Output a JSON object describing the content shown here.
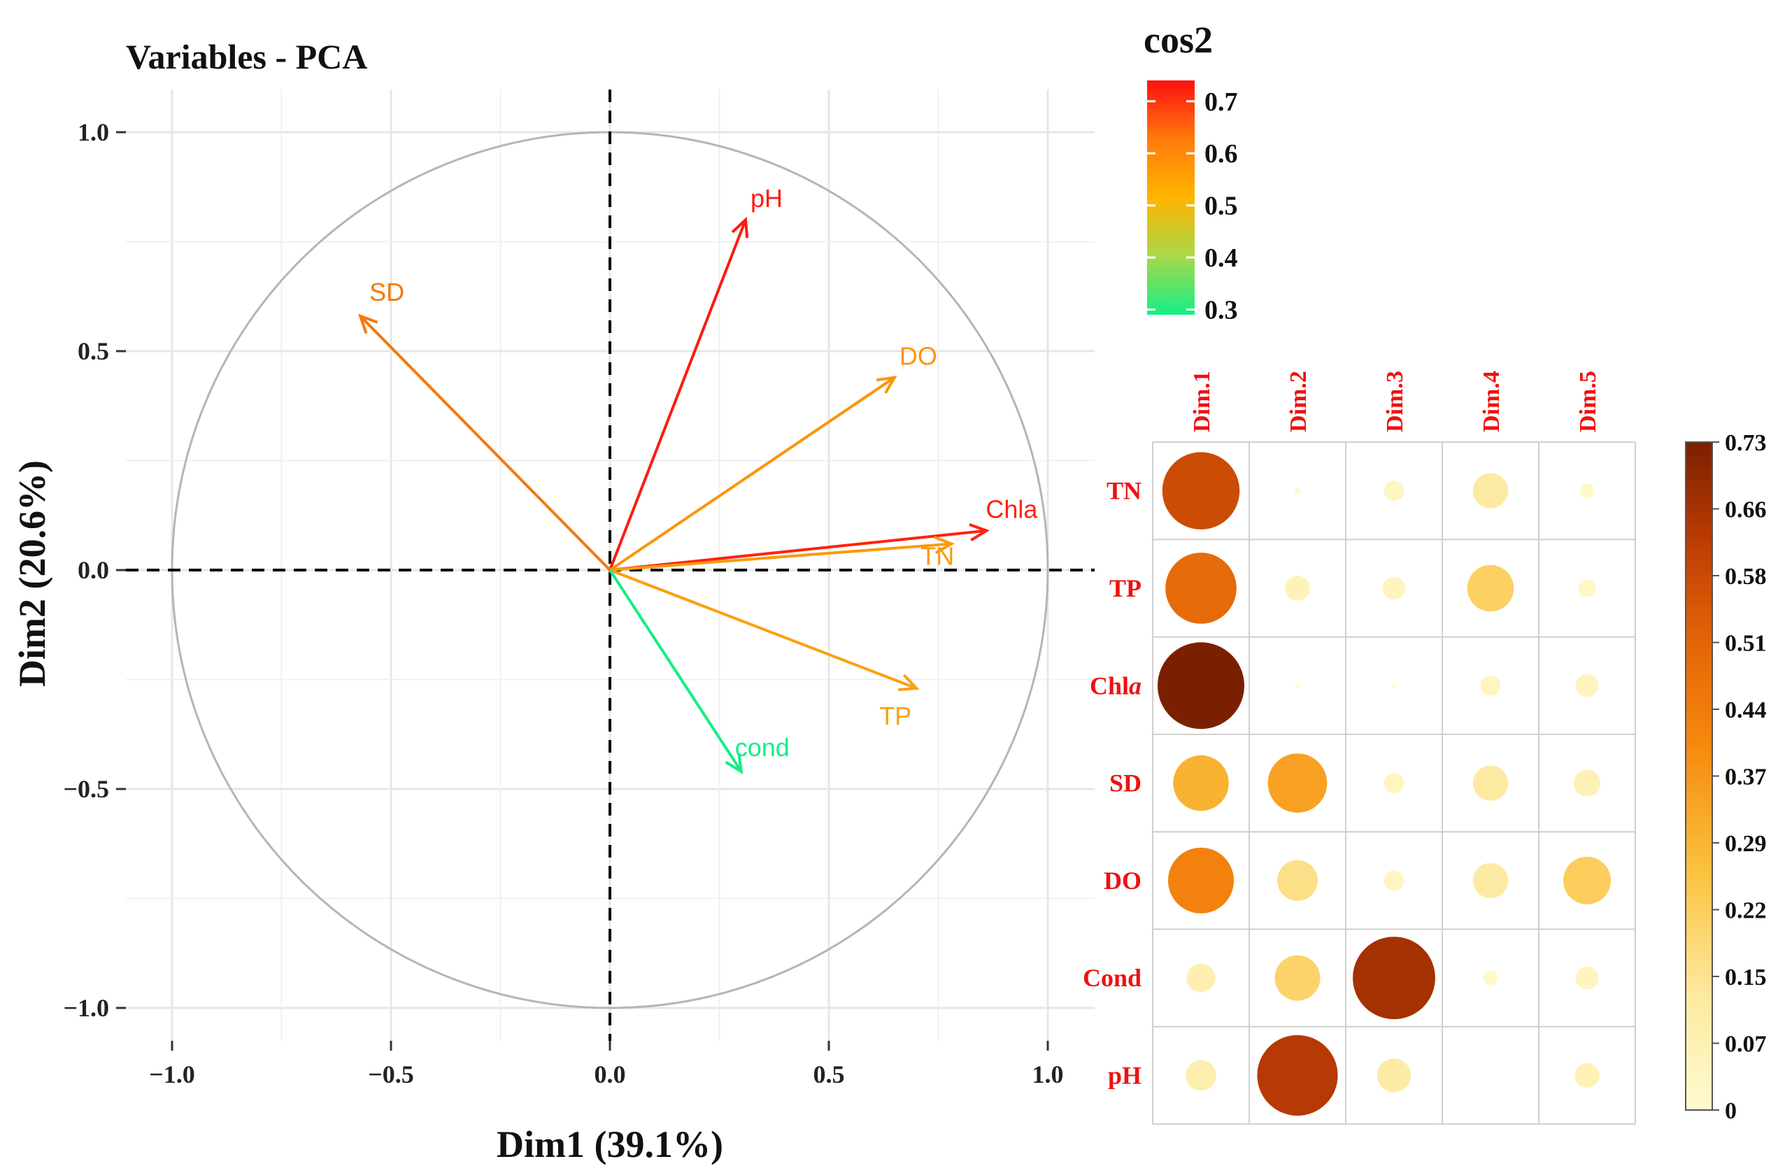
{
  "chart_data": [
    {
      "type": "scatter",
      "subtype": "pca-variables-biplot",
      "title": "Variables - PCA",
      "xlabel": "Dim1 (39.1%)",
      "ylabel": "Dim2 (20.6%)",
      "xlim": [
        -1.1,
        1.1
      ],
      "ylim": [
        -1.1,
        1.1
      ],
      "xticks": [
        "−1.0",
        "−0.5",
        "0.0",
        "0.5",
        "1.0"
      ],
      "yticks": [
        "1.0",
        "0.5",
        "0.0",
        "−0.5",
        "−1.0"
      ],
      "grid": true,
      "variables": [
        {
          "name": "pH",
          "x": 0.31,
          "y": 0.8,
          "cos2": 0.74,
          "color": "#ff1a10"
        },
        {
          "name": "SD",
          "x": -0.57,
          "y": 0.58,
          "cos2": 0.62,
          "color": "#f5780e"
        },
        {
          "name": "DO",
          "x": 0.65,
          "y": 0.44,
          "cos2": 0.57,
          "color": "#fb9508"
        },
        {
          "name": "Chla",
          "x": 0.86,
          "y": 0.09,
          "cos2": 0.73,
          "color": "#ff2210"
        },
        {
          "name": "TN",
          "x": 0.78,
          "y": 0.06,
          "cos2": 0.58,
          "color": "#fb9a0a"
        },
        {
          "name": "TP",
          "x": 0.7,
          "y": -0.27,
          "cos2": 0.55,
          "color": "#fba010"
        },
        {
          "name": "cond",
          "x": 0.3,
          "y": -0.46,
          "cos2": 0.3,
          "color": "#13ef86"
        }
      ],
      "legend": {
        "title": "cos2",
        "position": "top-right",
        "range": [
          0.29,
          0.74
        ],
        "ticks": [
          "0.7",
          "0.6",
          "0.5",
          "0.4",
          "0.3"
        ],
        "tick_values": [
          0.7,
          0.6,
          0.5,
          0.4,
          0.3
        ],
        "colors": [
          "#13ef86",
          "#a9d84a",
          "#ffb400",
          "#ff7a0c",
          "#ff1010"
        ]
      }
    },
    {
      "type": "heatmap",
      "subtype": "corrplot-circle",
      "columns": [
        "Dim.1",
        "Dim.2",
        "Dim.3",
        "Dim.4",
        "Dim.5"
      ],
      "rows": [
        {
          "label": "TN",
          "italic": "",
          "values": [
            0.58,
            0.004,
            0.04,
            0.12,
            0.02
          ]
        },
        {
          "label": "TP",
          "italic": "",
          "values": [
            0.49,
            0.06,
            0.05,
            0.21,
            0.03
          ]
        },
        {
          "label": "Chl",
          "italic": "a",
          "values": [
            0.73,
            0.003,
            0.002,
            0.04,
            0.05
          ]
        },
        {
          "label": "SD",
          "italic": "",
          "values": [
            0.3,
            0.34,
            0.04,
            0.12,
            0.07
          ]
        },
        {
          "label": "DO",
          "italic": "",
          "values": [
            0.42,
            0.16,
            0.04,
            0.12,
            0.22
          ]
        },
        {
          "label": "Cond",
          "italic": "",
          "values": [
            0.08,
            0.2,
            0.66,
            0.02,
            0.05
          ]
        },
        {
          "label": "pH",
          "italic": "",
          "values": [
            0.09,
            0.63,
            0.11,
            0.0,
            0.06
          ]
        }
      ],
      "colorbar": {
        "range": [
          0,
          0.73
        ],
        "ticks": [
          "0.73",
          "0.66",
          "0.58",
          "0.51",
          "0.44",
          "0.37",
          "0.29",
          "0.22",
          "0.15",
          "0.07",
          "0"
        ],
        "colors": [
          "#fffbd0",
          "#fde9a0",
          "#fbc13e",
          "#f5880e",
          "#e06008",
          "#b83a03",
          "#7a2000"
        ]
      },
      "label_color": "#ee1111"
    }
  ]
}
